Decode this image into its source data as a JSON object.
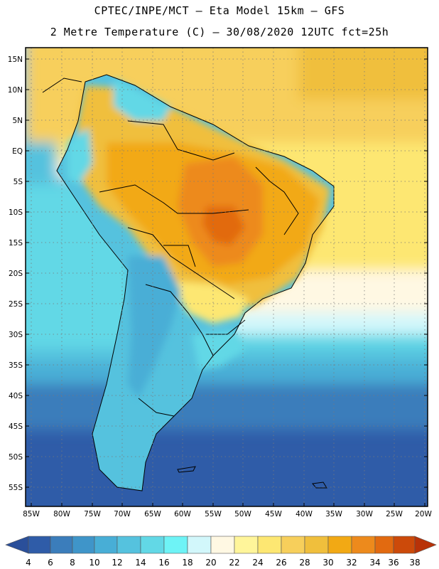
{
  "header": {
    "line1": "CPTEC/INPE/MCT –  Eta Model 15km – GFS",
    "line2": "2 Metre Temperature (C) – 30/08/2020 12UTC fct=25h"
  },
  "map": {
    "lat_labels": [
      "15N",
      "10N",
      "5N",
      "EQ",
      "5S",
      "10S",
      "15S",
      "20S",
      "25S",
      "30S",
      "35S",
      "40S",
      "45S",
      "50S",
      "55S"
    ],
    "lon_labels": [
      "85W",
      "80W",
      "75W",
      "70W",
      "65W",
      "60W",
      "55W",
      "50W",
      "45W",
      "40W",
      "35W",
      "30W",
      "25W",
      "20W"
    ],
    "colorbar": {
      "labels": [
        "4",
        "6",
        "8",
        "10",
        "12",
        "14",
        "16",
        "18",
        "20",
        "22",
        "24",
        "26",
        "28",
        "30",
        "32",
        "34",
        "36",
        "38"
      ],
      "colors": [
        "#2f5ca8",
        "#3b7dbb",
        "#3f95c9",
        "#48aed6",
        "#55c2de",
        "#62d8e6",
        "#6ef3f6",
        "#d2f7fb",
        "#fff8e3",
        "#fff59a",
        "#fde772",
        "#f7cf5b",
        "#f0bf3c",
        "#f2a914",
        "#ed8a1c",
        "#e26a10",
        "#cc4a0a",
        "#b83208"
      ]
    }
  }
}
